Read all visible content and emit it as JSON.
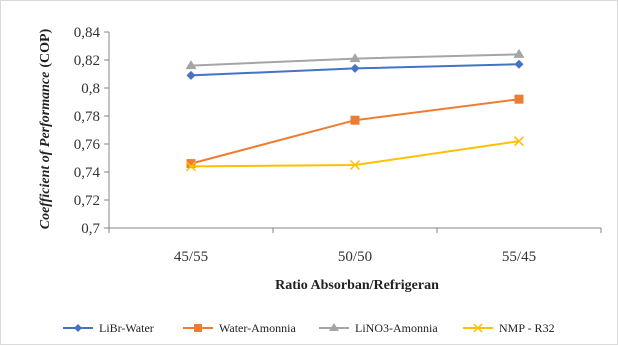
{
  "chart_data": {
    "type": "line",
    "categories": [
      "45/55",
      "50/50",
      "55/45"
    ],
    "xlabel": "Ratio Absorban/Refrigeran",
    "ylabel_italic": "Coefficient of Performance",
    "ylabel_suffix": "(COP)",
    "ylim": [
      0.7,
      0.84
    ],
    "ytick_values": [
      0.7,
      0.72,
      0.74,
      0.76,
      0.78,
      0.8,
      0.82,
      0.84
    ],
    "ytick_labels": [
      "0,7",
      "0,72",
      "0,74",
      "0,76",
      "0,78",
      "0,8",
      "0,82",
      "0,84"
    ],
    "grid": false,
    "legend_position": "bottom",
    "series": [
      {
        "name": "LiBr-Water",
        "values": [
          0.809,
          0.814,
          0.817
        ],
        "color": "#4472C4",
        "marker": "diamond"
      },
      {
        "name": "Water-Amonnia",
        "values": [
          0.746,
          0.777,
          0.792
        ],
        "color": "#ED7D31",
        "marker": "square"
      },
      {
        "name": "LiNO3-Amonnia",
        "values": [
          0.816,
          0.821,
          0.824
        ],
        "color": "#A5A5A5",
        "marker": "triangle"
      },
      {
        "name": "NMP - R32",
        "values": [
          0.744,
          0.745,
          0.762
        ],
        "color": "#FFC000",
        "marker": "x"
      }
    ]
  }
}
